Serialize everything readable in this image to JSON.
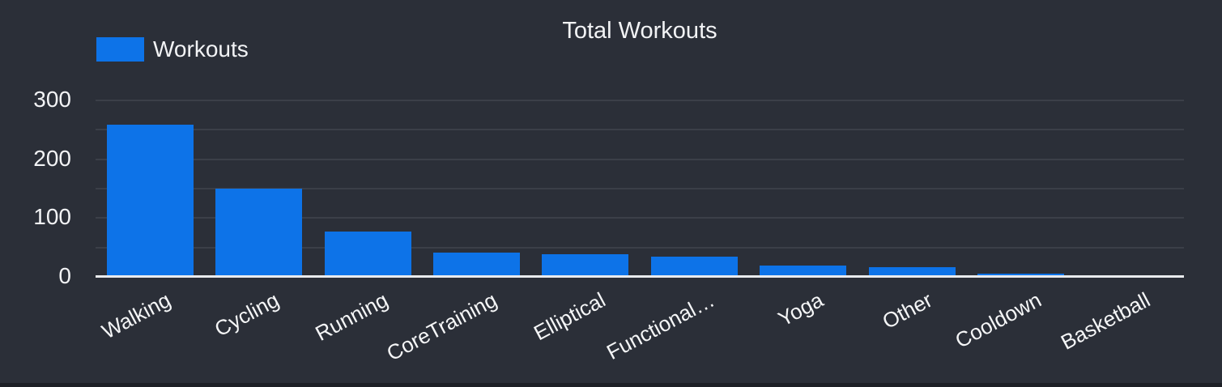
{
  "title": "Total Workouts",
  "legend": {
    "label": "Workouts",
    "swatch_color": "#0d73e8"
  },
  "colors": {
    "background": "#2b2f38",
    "bar": "#0d73e8",
    "gridline": "#3b3f48",
    "axis_line": "#e9ebee",
    "text": "#f2f3f5",
    "bottom_strip": "#1d2026"
  },
  "chart_data": {
    "type": "bar",
    "title": "Total Workouts",
    "categories": [
      "Walking",
      "Cycling",
      "Running",
      "CoreTraining",
      "Elliptical",
      "Functional…",
      "Yoga",
      "Other",
      "Cooldown",
      "Basketball"
    ],
    "series": [
      {
        "name": "Workouts",
        "values": [
          258,
          148,
          76,
          40,
          37,
          33,
          18,
          15,
          4,
          2
        ]
      }
    ],
    "xlabel": "",
    "ylabel": "",
    "ylim": [
      0,
      300
    ],
    "yticks": [
      0,
      100,
      200,
      300
    ],
    "gridline_step": 50,
    "grid": true,
    "legend_position": "top-left",
    "x_label_rotation_deg": -28,
    "bar_color": "#0d73e8"
  }
}
